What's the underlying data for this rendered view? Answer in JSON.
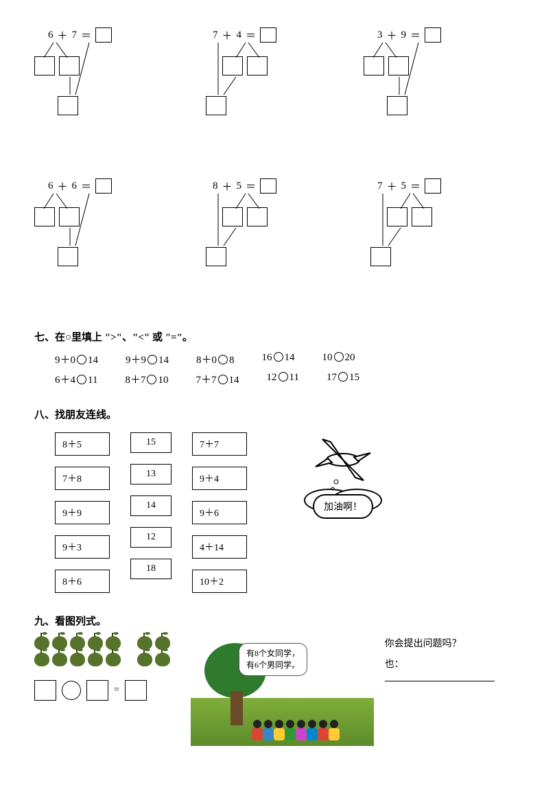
{
  "decomp": {
    "row1": [
      {
        "a": "6",
        "op": "＋",
        "b": "7",
        "eq": "＝"
      },
      {
        "a": "7",
        "op": "＋",
        "b": "4",
        "eq": "＝"
      },
      {
        "a": "3",
        "op": "＋",
        "b": "9",
        "eq": "＝"
      }
    ],
    "row2": [
      {
        "a": "6",
        "op": "＋",
        "b": "6",
        "eq": "＝"
      },
      {
        "a": "8",
        "op": "＋",
        "b": "5",
        "eq": "＝"
      },
      {
        "a": "7",
        "op": "＋",
        "b": "5",
        "eq": "＝"
      }
    ]
  },
  "section7": {
    "title": "七、在○里填上 \">\"、\"<\" 或 \"=\"。",
    "rows": [
      [
        "9＋0○14",
        "9＋9○14",
        "8＋0○8",
        "16○14",
        "10○20"
      ],
      [
        "6＋4○11",
        "8＋7○10",
        "7＋7○14",
        "12○11",
        "17○15"
      ]
    ]
  },
  "section8": {
    "title": "八、找朋友连线。",
    "colA": [
      "8＋5",
      "7＋8",
      "9＋9",
      "9＋3",
      "8＋6"
    ],
    "colB": [
      "15",
      "13",
      "14",
      "12",
      "18"
    ],
    "colC": [
      "7＋7",
      "9＋4",
      "9＋6",
      "4＋14",
      "10＋2"
    ],
    "cheer": "加油啊！"
  },
  "section9": {
    "title": "九、看图列式。",
    "apples": {
      "group1_row1": 5,
      "group1_row2": 5,
      "group2_row1": 2,
      "group2_row2": 2
    },
    "bubble_line1": "有8个女同学，",
    "bubble_line2": "有6个男同学。",
    "question": "你会提出问题吗？",
    "answer_prefix": "也：",
    "kid_colors": [
      "#d43",
      "#38c",
      "#fc3",
      "#393",
      "#c4c",
      "#08c",
      "#d43",
      "#fc3"
    ]
  },
  "style": {
    "box_border": "#000000",
    "apple_color": "#56732b",
    "grass_color": "#6fa538",
    "foliage_color": "#2f7a2c",
    "trunk_color": "#6b4a2a"
  }
}
